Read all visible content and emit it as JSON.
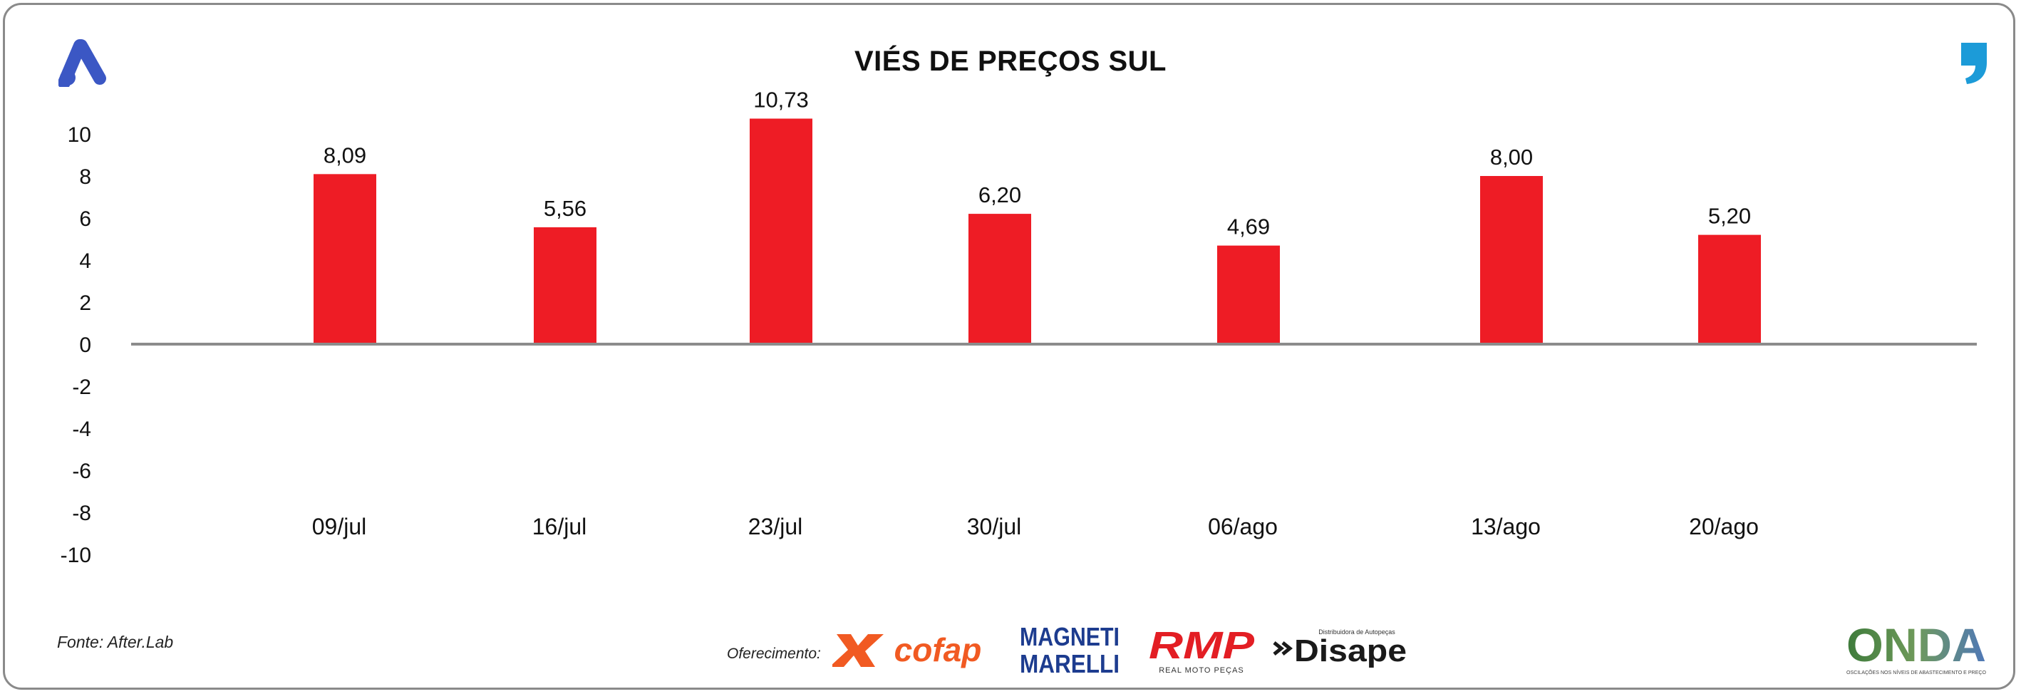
{
  "title": "VIÉS DE PREÇOS SUL",
  "source": "Fonte: After.Lab",
  "sponsors": {
    "label": "Oferecimento:",
    "cofap": "cofap",
    "magneti_line1": "MAGNETI",
    "magneti_line2": "MARELLI",
    "rmp": "RMP",
    "rmp_sub": "REAL MOTO PEÇAS",
    "disape": "Disape",
    "disape_sub": "Distribuidora de Autopeças"
  },
  "brand": {
    "onda": "ONDA",
    "onda_sub": "OSCILAÇÕES NOS NÍVEIS DE ABASTECIMENTO E PREÇO"
  },
  "colors": {
    "bar": "#ee1c25",
    "axis": "#8c8c8c",
    "logo_a": "#3b57c4",
    "logo_quote": "#1c9bd8",
    "cofap": "#f15a22",
    "magneti": "#1d3c8f",
    "rmp": "#e31e24",
    "disape": "#1a1a1a"
  },
  "icons": {
    "top_left": "a-logo-icon",
    "top_right": "quote-mark-icon"
  },
  "chart_data": {
    "type": "bar",
    "categories": [
      "09/jul",
      "16/jul",
      "23/jul",
      "30/jul",
      "06/ago",
      "13/ago",
      "20/ago"
    ],
    "values": [
      8.09,
      5.56,
      10.73,
      6.2,
      4.69,
      8.0,
      5.2
    ],
    "value_labels": [
      "8,09",
      "5,56",
      "10,73",
      "6,20",
      "4,69",
      "8,00",
      "5,20"
    ],
    "ylim": [
      -10,
      10
    ],
    "yticks": [
      10,
      8,
      6,
      4,
      2,
      0,
      -2,
      -4,
      -6,
      -8,
      -10
    ],
    "grid": false,
    "legend": "none"
  }
}
